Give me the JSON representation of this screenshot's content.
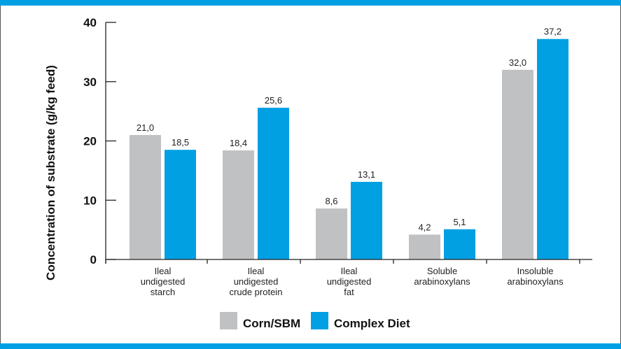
{
  "chart_data": {
    "type": "bar",
    "title": "",
    "xlabel": "",
    "ylabel": "Concentration of substrate (g/kg feed)",
    "ylim": [
      0,
      40
    ],
    "yticks": [
      0,
      10,
      20,
      30,
      40
    ],
    "grid": false,
    "legend_position": "bottom",
    "categories": [
      [
        "Ileal",
        "undigested",
        "starch"
      ],
      [
        "Ileal",
        "undigested",
        "crude protein"
      ],
      [
        "Ileal",
        "undigested",
        "fat"
      ],
      [
        "Soluble",
        "arabinoxylans"
      ],
      [
        "Insoluble",
        "arabinoxylans"
      ]
    ],
    "series": [
      {
        "name": "Corn/SBM",
        "color": "#c0c1c3",
        "values": [
          21.0,
          18.4,
          8.6,
          4.2,
          32.0
        ],
        "labels": [
          "21,0",
          "18,4",
          "8,6",
          "4,2",
          "32,0"
        ]
      },
      {
        "name": "Complex Diet",
        "color": "#00a0e3",
        "values": [
          18.5,
          25.6,
          13.1,
          5.1,
          37.2
        ],
        "labels": [
          "18,5",
          "25,6",
          "13,1",
          "5,1",
          "37,2"
        ]
      }
    ]
  }
}
